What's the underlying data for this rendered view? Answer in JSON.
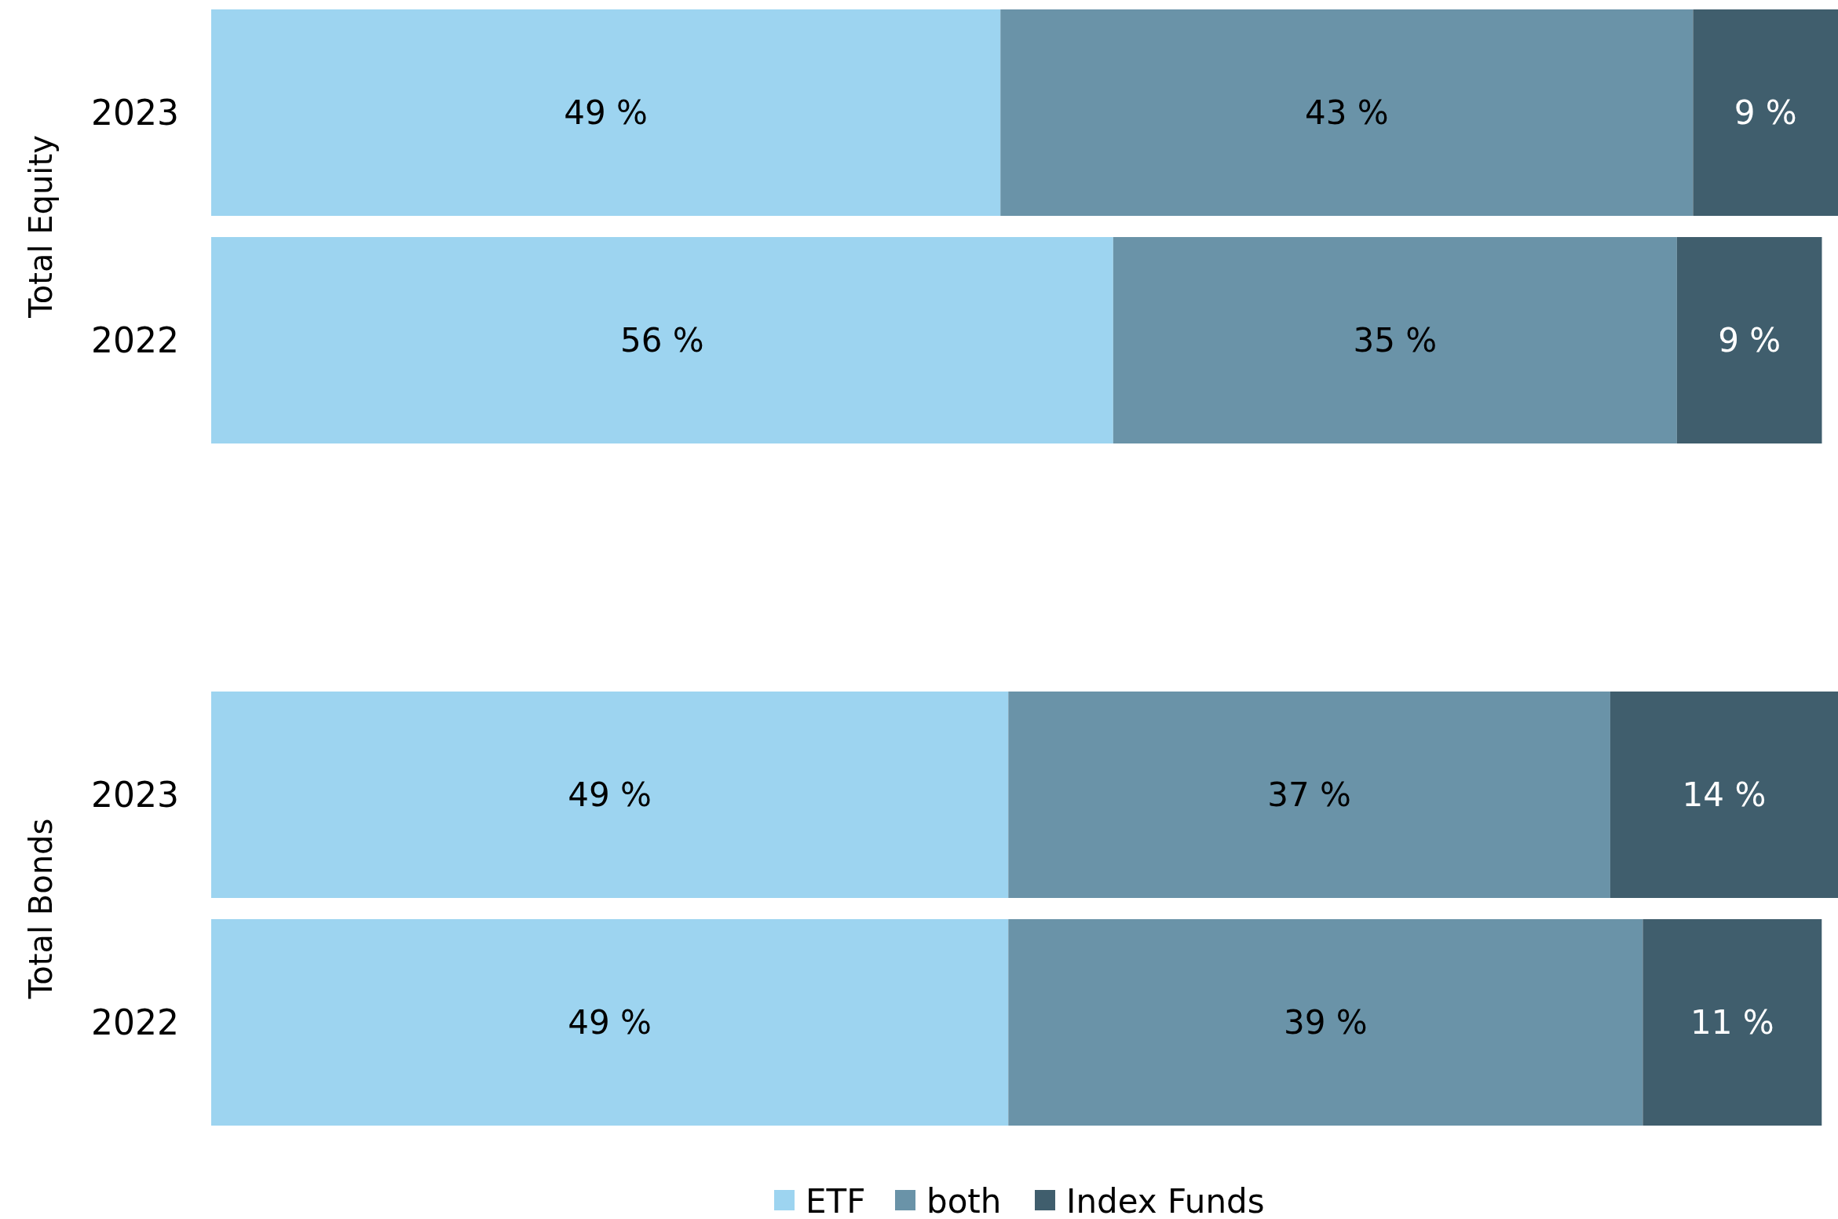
{
  "chart_data": [
    {
      "type": "bar",
      "orientation": "horizontal",
      "stacked": true,
      "data_labels": false,
      "ylabel": "Total Equity",
      "categories": [
        "2023",
        "2022"
      ],
      "legend": false,
      "series": [
        {
          "color": "#9dd4f0",
          "values": [
            49,
            56
          ],
          "value_labels": [
            "49 %",
            "56 %"
          ]
        },
        {
          "color": "#6a93a8",
          "values": [
            43,
            35
          ],
          "value_labels": [
            "43 %",
            "35 %"
          ]
        },
        {
          "color": "#405e6d",
          "values": [
            9,
            9
          ],
          "value_labels": [
            "9 %",
            "9 %"
          ]
        }
      ]
    },
    {
      "type": "bar",
      "orientation": "horizontal",
      "stacked": true,
      "data_labels": false,
      "ylabel": "Total Bonds",
      "categories": [
        "2023",
        "2022"
      ],
      "legend": "bottom",
      "series": [
        {
          "name": "ETF",
          "color": "#9dd4f0",
          "values": [
            49,
            49
          ],
          "value_labels": [
            "49 %",
            "49 %"
          ]
        },
        {
          "name": "both",
          "color": "#6a93a8",
          "values": [
            37,
            39
          ],
          "value_labels": [
            "37 %",
            "39 %"
          ]
        },
        {
          "name": "Index Funds",
          "color": "#405e6d",
          "values": [
            14,
            11
          ],
          "value_labels": [
            "14 %",
            "11 %"
          ]
        }
      ]
    }
  ]
}
